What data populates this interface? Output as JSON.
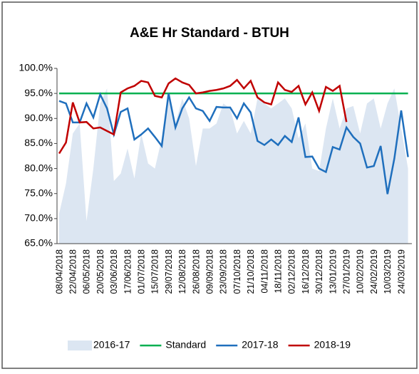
{
  "chart_data": {
    "type": "line",
    "title": "A&E Hr Standard - BTUH",
    "categories": [
      "08/04/2018",
      null,
      "22/04/2018",
      null,
      "06/05/2018",
      null,
      "20/05/2018",
      null,
      "03/06/2018",
      null,
      "17/06/2018",
      null,
      "01/07/2018",
      null,
      "15/07/2018",
      null,
      "29/07/2018",
      null,
      "12/08/2018",
      null,
      "26/08/2018",
      null,
      "09/09/2018",
      null,
      "23/09/2018",
      null,
      "07/10/2018",
      null,
      "21/10/2018",
      null,
      "04/11/2018",
      null,
      "18/11/2018",
      null,
      "02/12/2018",
      null,
      "16/12/2018",
      null,
      "30/12/2018",
      null,
      "13/01/2019",
      null,
      "27/01/2019",
      null,
      "10/02/2019",
      null,
      "24/02/2019",
      null,
      "10/03/2019",
      null,
      "24/03/2019",
      null
    ],
    "series": [
      {
        "name": "2016-17",
        "kind": "area",
        "color": "#dce6f2",
        "values": [
          71,
          77,
          87,
          89,
          69.5,
          80,
          93,
          96,
          77.5,
          79,
          84,
          78,
          87,
          81,
          80,
          86,
          95,
          89,
          94,
          90,
          80.5,
          88,
          88,
          89,
          93,
          92,
          87,
          89.5,
          87,
          94,
          93,
          92,
          93,
          94,
          92,
          86,
          89,
          80,
          79.5,
          88,
          94,
          88,
          92,
          92.5,
          87,
          93,
          94,
          88,
          93,
          96,
          88,
          80
        ]
      },
      {
        "name": "Standard",
        "color": "#00b050",
        "values": [
          95,
          95,
          95,
          95,
          95,
          95,
          95,
          95,
          95,
          95,
          95,
          95,
          95,
          95,
          95,
          95,
          95,
          95,
          95,
          95,
          95,
          95,
          95,
          95,
          95,
          95,
          95,
          95,
          95,
          95,
          95,
          95,
          95,
          95,
          95,
          95,
          95,
          95,
          95,
          95,
          95,
          95,
          95,
          95,
          95,
          95,
          95,
          95,
          95,
          95,
          95,
          95
        ]
      },
      {
        "name": "2017-18",
        "color": "#1f6fbd",
        "values": [
          93.5,
          93,
          89.2,
          89.2,
          93,
          90.2,
          94.8,
          92,
          86.8,
          91.3,
          92,
          85.8,
          86.8,
          88,
          86.3,
          84.5,
          95,
          88.2,
          92,
          94.2,
          92,
          91.5,
          89.5,
          92.3,
          92.2,
          92.2,
          90,
          93,
          91.2,
          85.5,
          84.7,
          85.8,
          84.7,
          86.5,
          85.3,
          90.2,
          82.3,
          82.4,
          80,
          79.3,
          84.3,
          83.8,
          88.2,
          86.3,
          85,
          80.2,
          80.5,
          84.5,
          74.9,
          82,
          91.6,
          82.3
        ]
      },
      {
        "name": "2018-19",
        "color": "#c00000",
        "values": [
          83,
          85.2,
          93.2,
          89.2,
          89.3,
          88,
          88.2,
          87.5,
          86.8,
          95.2,
          96,
          96.5,
          97.5,
          97.2,
          94.5,
          94.2,
          97,
          98,
          97.2,
          96.7,
          95,
          95.2,
          95.5,
          95.7,
          96,
          96.5,
          97.7,
          96,
          97.5,
          94.2,
          93.2,
          92.8,
          97.2,
          95.7,
          95.3,
          96.5,
          92.8,
          95.2,
          91.5,
          96.3,
          95.5,
          96.5,
          89.3,
          null,
          null,
          null,
          null,
          null,
          null,
          null,
          null,
          null
        ]
      }
    ],
    "ylim": [
      65,
      100
    ],
    "yticks": [
      {
        "value": 65,
        "label": "65.0%"
      },
      {
        "value": 70,
        "label": "70.0%"
      },
      {
        "value": 75,
        "label": "75.0%"
      },
      {
        "value": 80,
        "label": "80.0%"
      },
      {
        "value": 85,
        "label": "85.0%"
      },
      {
        "value": 90,
        "label": "90.0%"
      },
      {
        "value": 95,
        "label": "95.0%"
      },
      {
        "value": 100,
        "label": "100.0%"
      }
    ],
    "legend": "bottom"
  }
}
